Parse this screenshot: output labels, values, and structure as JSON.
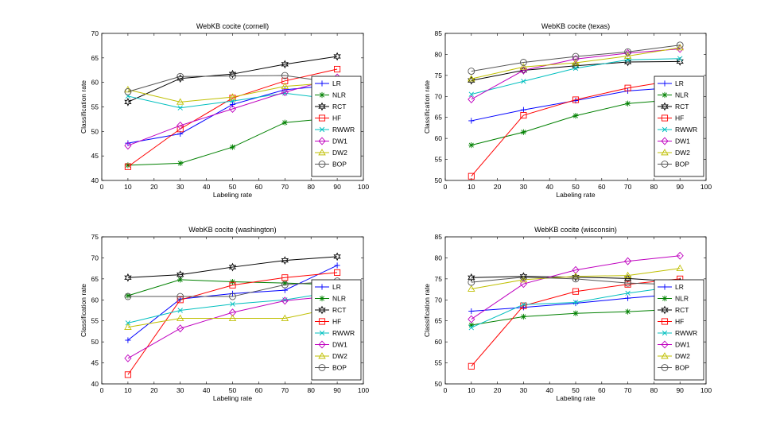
{
  "chart_data": [
    {
      "type": "line",
      "title": "WebKB cocite (cornell)",
      "xlabel": "Labeling rate",
      "ylabel": "Classification rate",
      "xlim": [
        0,
        100
      ],
      "ylim": [
        40,
        70
      ],
      "xticks": [
        0,
        10,
        20,
        30,
        40,
        50,
        60,
        70,
        80,
        90,
        100
      ],
      "yticks": [
        40,
        45,
        50,
        55,
        60,
        65,
        70
      ],
      "legend": "bottom-right",
      "x": [
        10,
        30,
        50,
        70,
        90
      ],
      "series": [
        {
          "name": "LR",
          "values": [
            47.6,
            49.5,
            55.5,
            58.5,
            59.5
          ]
        },
        {
          "name": "NLR",
          "values": [
            43.1,
            43.5,
            46.8,
            51.8,
            52.8
          ]
        },
        {
          "name": "RCT",
          "values": [
            56.0,
            60.8,
            61.7,
            63.7,
            65.3
          ]
        },
        {
          "name": "HF",
          "values": [
            42.8,
            50.5,
            56.8,
            60.3,
            62.7
          ]
        },
        {
          "name": "RWWR",
          "values": [
            57.2,
            54.8,
            56.2,
            57.8,
            56.5
          ]
        },
        {
          "name": "DW1",
          "values": [
            47.1,
            51.2,
            54.6,
            58.0,
            61.0
          ]
        },
        {
          "name": "DW2",
          "values": [
            58.5,
            56.0,
            57.0,
            59.2,
            60.0
          ]
        },
        {
          "name": "BOP",
          "values": [
            58.1,
            61.2,
            61.3,
            61.4,
            59.9
          ]
        }
      ]
    },
    {
      "type": "line",
      "title": "WebKB cocite (texas)",
      "xlabel": "Labeling rate",
      "ylabel": "Classification rate",
      "xlim": [
        0,
        100
      ],
      "ylim": [
        50,
        85
      ],
      "xticks": [
        0,
        10,
        20,
        30,
        40,
        50,
        60,
        70,
        80,
        90,
        100
      ],
      "yticks": [
        50,
        55,
        60,
        65,
        70,
        75,
        80,
        85
      ],
      "legend": "bottom-right",
      "x": [
        10,
        30,
        50,
        70,
        90
      ],
      "series": [
        {
          "name": "LR",
          "values": [
            64.2,
            66.8,
            69.0,
            71.3,
            72.2
          ]
        },
        {
          "name": "NLR",
          "values": [
            58.4,
            61.5,
            65.4,
            68.3,
            69.3
          ]
        },
        {
          "name": "RCT",
          "values": [
            73.8,
            76.2,
            77.3,
            78.2,
            78.3
          ]
        },
        {
          "name": "HF",
          "values": [
            51.0,
            65.5,
            69.2,
            72.0,
            74.0
          ]
        },
        {
          "name": "RWWR",
          "values": [
            70.5,
            73.6,
            76.7,
            78.7,
            79.0
          ]
        },
        {
          "name": "DW1",
          "values": [
            69.3,
            76.2,
            78.9,
            80.3,
            81.3
          ]
        },
        {
          "name": "DW2",
          "values": [
            74.2,
            77.0,
            78.0,
            79.6,
            81.6
          ]
        },
        {
          "name": "BOP",
          "values": [
            76.0,
            78.1,
            79.5,
            80.6,
            82.2
          ]
        }
      ]
    },
    {
      "type": "line",
      "title": "WebKB cocite (washington)",
      "xlabel": "Labeling rate",
      "ylabel": "Classification rate",
      "xlim": [
        0,
        100
      ],
      "ylim": [
        40,
        75
      ],
      "xticks": [
        0,
        10,
        20,
        30,
        40,
        50,
        60,
        70,
        80,
        90,
        100
      ],
      "yticks": [
        40,
        45,
        50,
        55,
        60,
        65,
        70,
        75
      ],
      "legend": "bottom-right",
      "x": [
        10,
        30,
        50,
        70,
        90
      ],
      "series": [
        {
          "name": "LR",
          "values": [
            50.4,
            60.2,
            61.5,
            62.3,
            68.2
          ]
        },
        {
          "name": "NLR",
          "values": [
            61.0,
            64.8,
            64.3,
            64.0,
            63.6
          ]
        },
        {
          "name": "RCT",
          "values": [
            65.3,
            66.0,
            67.8,
            69.4,
            70.3
          ]
        },
        {
          "name": "HF",
          "values": [
            42.2,
            60.0,
            63.5,
            65.3,
            66.5
          ]
        },
        {
          "name": "RWWR",
          "values": [
            54.5,
            57.5,
            59.0,
            60.0,
            62.0
          ]
        },
        {
          "name": "DW1",
          "values": [
            46.1,
            53.2,
            57.0,
            59.8,
            61.0
          ]
        },
        {
          "name": "DW2",
          "values": [
            53.5,
            55.6,
            55.6,
            55.6,
            58.2
          ]
        },
        {
          "name": "BOP",
          "values": [
            60.8,
            60.8,
            60.8,
            63.6,
            64.5
          ]
        }
      ]
    },
    {
      "type": "line",
      "title": "WebKB cocite (wisconsin)",
      "xlabel": "Labeling rate",
      "ylabel": "Classification rate",
      "xlim": [
        0,
        100
      ],
      "ylim": [
        50,
        85
      ],
      "xticks": [
        0,
        10,
        20,
        30,
        40,
        50,
        60,
        70,
        80,
        90,
        100
      ],
      "yticks": [
        50,
        55,
        60,
        65,
        70,
        75,
        80,
        85
      ],
      "legend": "bottom-right",
      "x": [
        10,
        30,
        50,
        70,
        90
      ],
      "series": [
        {
          "name": "LR",
          "values": [
            67.3,
            68.2,
            69.2,
            70.4,
            71.4
          ]
        },
        {
          "name": "NLR",
          "values": [
            64.0,
            66.0,
            66.8,
            67.2,
            67.8
          ]
        },
        {
          "name": "RCT",
          "values": [
            75.3,
            75.6,
            75.4,
            75.1,
            74.3
          ]
        },
        {
          "name": "HF",
          "values": [
            54.2,
            68.6,
            72.0,
            73.7,
            75.0
          ]
        },
        {
          "name": "RWWR",
          "values": [
            63.4,
            68.9,
            69.4,
            71.6,
            73.3
          ]
        },
        {
          "name": "DW1",
          "values": [
            65.4,
            73.8,
            77.1,
            79.2,
            80.5
          ]
        },
        {
          "name": "DW2",
          "values": [
            72.6,
            74.8,
            75.6,
            75.8,
            77.5
          ]
        },
        {
          "name": "BOP",
          "values": [
            74.2,
            75.4,
            75.0,
            74.0,
            73.6
          ]
        }
      ]
    }
  ],
  "series_styles": [
    {
      "name": "LR",
      "color": "#0000ff",
      "marker": "plus"
    },
    {
      "name": "NLR",
      "color": "#008000",
      "marker": "asterisk"
    },
    {
      "name": "RCT",
      "color": "#000000",
      "marker": "hexagram"
    },
    {
      "name": "HF",
      "color": "#ff0000",
      "marker": "square"
    },
    {
      "name": "RWWR",
      "color": "#00bfbf",
      "marker": "x"
    },
    {
      "name": "DW1",
      "color": "#bf00bf",
      "marker": "diamond"
    },
    {
      "name": "DW2",
      "color": "#bfbf00",
      "marker": "triangle"
    },
    {
      "name": "BOP",
      "color": "#555555",
      "marker": "circle"
    }
  ]
}
